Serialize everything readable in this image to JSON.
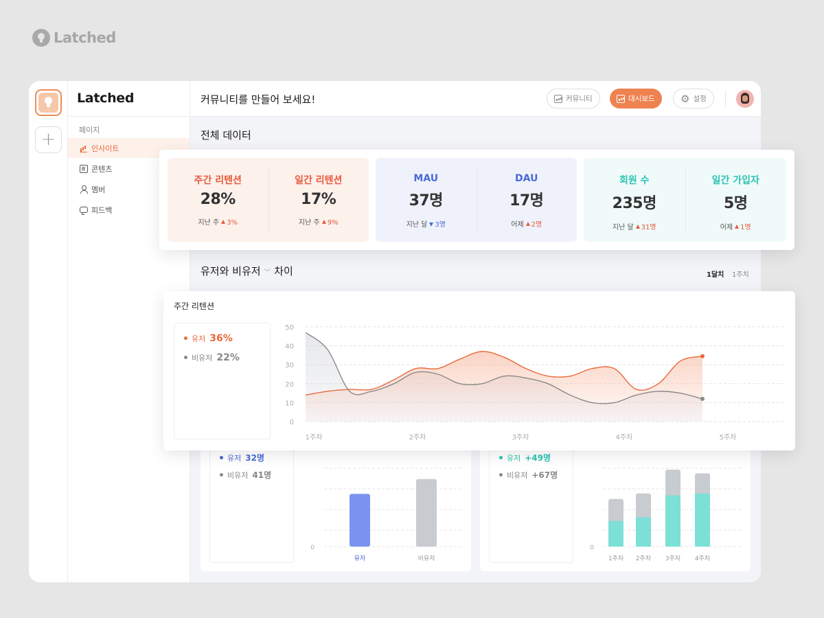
{
  "brand": {
    "name": "Latched"
  },
  "sidebar": {
    "title": "Latched",
    "section": "페이지",
    "items": [
      {
        "label": "인사이트",
        "icon": "bar-chart-icon",
        "active": true
      },
      {
        "label": "콘텐츠",
        "icon": "document-icon",
        "active": false
      },
      {
        "label": "멤버",
        "icon": "members-icon",
        "active": false
      },
      {
        "label": "피드백",
        "icon": "chat-icon",
        "active": false
      }
    ]
  },
  "header": {
    "title": "커뮤니티를 만들어 보세요!",
    "nav": [
      {
        "label": "커뮤니티",
        "icon": "bar-chart-icon",
        "active": false
      },
      {
        "label": "대시보드",
        "icon": "bar-chart-icon",
        "active": true
      },
      {
        "label": "설정",
        "icon": "gear-icon",
        "active": false
      }
    ]
  },
  "overview": {
    "title": "전체 데이터",
    "groups": [
      {
        "color": "#e8593a",
        "bg": "#fdf1ec",
        "cells": [
          {
            "label": "주간 리텐션",
            "value": "28%",
            "sub_label": "지난 주",
            "delta": "3%",
            "dir": "up"
          },
          {
            "label": "일간 리텐션",
            "value": "17%",
            "sub_label": "지난 주",
            "delta": "9%",
            "dir": "up"
          }
        ]
      },
      {
        "color": "#4a6ad8",
        "bg": "#eff2fb",
        "cells": [
          {
            "label": "MAU",
            "value": "37명",
            "sub_label": "지난 달",
            "delta": "3명",
            "dir": "down"
          },
          {
            "label": "DAU",
            "value": "17명",
            "sub_label": "어제",
            "delta": "2명",
            "dir": "up"
          }
        ]
      },
      {
        "color": "#2cc4b5",
        "bg": "#effaf9",
        "cells": [
          {
            "label": "회원 수",
            "value": "235명",
            "sub_label": "지난 달",
            "delta": "31명",
            "dir": "up"
          },
          {
            "label": "일간 가입자",
            "value": "5명",
            "sub_label": "어제",
            "delta": "1명",
            "dir": "up"
          }
        ]
      }
    ]
  },
  "compare": {
    "title": "유저와 비유저",
    "title_suffix": "차이",
    "ranges": [
      "1달치",
      "1주치"
    ],
    "selected_range": "1달치"
  },
  "retention_legend": {
    "title": "주간 리텐션",
    "user": {
      "label": "유저",
      "value": "36%",
      "color": "#e8693a"
    },
    "nonuser": {
      "label": "비유저",
      "value": "22%",
      "color": "#888888"
    }
  },
  "panel_left_legend": {
    "user": {
      "label": "유저",
      "value": "32명",
      "color": "#4a6ad8"
    },
    "nonuser": {
      "label": "비유저",
      "value": "41명",
      "color": "#888888"
    }
  },
  "panel_right_legend": {
    "user": {
      "label": "유저",
      "value": "+49명",
      "color": "#2cc4b5"
    },
    "nonuser": {
      "label": "비유저",
      "value": "+67명",
      "color": "#888888"
    }
  },
  "chart_data": [
    {
      "type": "line",
      "title": "주간 리텐션",
      "x": [
        "1주차",
        "",
        "",
        "",
        "",
        "2주차",
        "",
        "",
        "",
        "3주차",
        "",
        "",
        "",
        "4주차",
        "",
        "",
        "",
        "",
        ""
      ],
      "tick_labels": [
        "1주차",
        "2주차",
        "3주차",
        "4주차",
        "5주차"
      ],
      "ylim": [
        0,
        50
      ],
      "yticks": [
        0,
        10,
        20,
        30,
        40,
        50
      ],
      "series": [
        {
          "name": "유저",
          "color": "#e8693a",
          "values": [
            14,
            16,
            17,
            17,
            22,
            28,
            28,
            33,
            37,
            34,
            28,
            24,
            24,
            28,
            28,
            17,
            20,
            32,
            34.5
          ]
        },
        {
          "name": "비유저",
          "color": "#888888",
          "values": [
            47,
            38,
            16,
            16,
            20,
            26,
            25,
            20,
            20,
            24,
            23,
            20,
            14,
            10,
            10,
            14,
            16,
            15,
            12
          ]
        }
      ],
      "grid": true
    },
    {
      "type": "bar",
      "categories": [
        "유저",
        "비유저"
      ],
      "values": [
        32,
        41
      ],
      "colors": [
        "#7b93f0",
        "#c8cbcf"
      ],
      "ylim": [
        0,
        50
      ],
      "yticks": [
        0
      ]
    },
    {
      "type": "bar",
      "stacked": true,
      "categories": [
        "1주차",
        "2주차",
        "3주차",
        "4주차"
      ],
      "series": [
        {
          "name": "유저",
          "color": "#7de0d6",
          "values": [
            14,
            16,
            28,
            29
          ]
        },
        {
          "name": "비유저",
          "color": "#c8cbcf",
          "values": [
            12,
            13,
            14,
            11
          ]
        }
      ],
      "ylim": [
        0,
        45
      ],
      "yticks": [
        0
      ]
    }
  ]
}
